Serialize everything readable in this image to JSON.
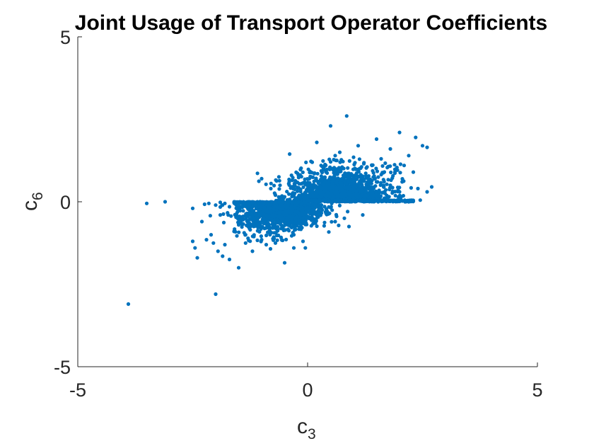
{
  "chart_data": {
    "type": "scatter",
    "title": "Joint Usage of Transport Operator Coefficients",
    "xlabel": {
      "base": "c",
      "sub": "3"
    },
    "ylabel": {
      "base": "c",
      "sub": "6"
    },
    "xlim": [
      -5,
      5
    ],
    "ylim": [
      -5,
      5
    ],
    "xticks": [
      "-5",
      "0",
      "5"
    ],
    "yticks": [
      "5",
      "0",
      "-5"
    ],
    "grid": false,
    "color": "#0072BD",
    "series": [
      {
        "points": [
          [
            -3.9,
            -3.1
          ],
          [
            -3.5,
            -0.05
          ],
          [
            -3.1,
            0.0
          ],
          [
            -2.5,
            -0.2
          ],
          [
            -2.5,
            -1.2
          ],
          [
            -2.45,
            -1.4
          ],
          [
            -2.4,
            -1.7
          ],
          [
            -2.3,
            -0.6
          ],
          [
            -2.2,
            -1.15
          ],
          [
            -2.1,
            -1.0
          ],
          [
            -2.05,
            -1.25
          ],
          [
            -2.0,
            -2.8
          ],
          [
            -1.95,
            -1.5
          ],
          [
            -1.9,
            -0.4
          ],
          [
            -1.85,
            -1.65
          ],
          [
            -1.8,
            -1.3
          ],
          [
            -1.7,
            -1.75
          ],
          [
            -1.6,
            -0.9
          ],
          [
            -1.5,
            -2.0
          ],
          [
            -1.35,
            -1.25
          ],
          [
            -1.2,
            -1.5
          ],
          [
            -1.1,
            -0.7
          ],
          [
            -1.0,
            0.7
          ],
          [
            -0.9,
            -1.3
          ],
          [
            -0.5,
            -1.85
          ],
          [
            -0.3,
            -1.4
          ],
          [
            -0.1,
            -1.2
          ],
          [
            -0.05,
            -1.4
          ],
          [
            -2.15,
            -0.05
          ],
          [
            -2.0,
            -0.1
          ],
          [
            -1.9,
            -0.02
          ],
          [
            -1.8,
            -0.05
          ],
          [
            -1.7,
            -0.15
          ],
          [
            -1.6,
            -0.03
          ],
          [
            -1.55,
            -0.4
          ],
          [
            -1.45,
            -0.6
          ],
          [
            -1.4,
            -0.08
          ],
          [
            -1.3,
            -0.2
          ],
          [
            -1.25,
            -0.85
          ],
          [
            -1.2,
            -0.03
          ],
          [
            -0.8,
            0.4
          ],
          [
            -0.6,
            0.5
          ],
          [
            -0.4,
            0.6
          ],
          [
            -0.2,
            0.8
          ],
          [
            0.1,
            1.2
          ],
          [
            0.2,
            1.8
          ],
          [
            0.5,
            2.3
          ],
          [
            0.85,
            2.6
          ],
          [
            0.6,
            1.4
          ],
          [
            1.1,
            1.7
          ],
          [
            1.5,
            1.9
          ],
          [
            1.8,
            1.6
          ],
          [
            2.0,
            2.1
          ],
          [
            2.2,
            1.4
          ],
          [
            2.35,
            1.95
          ],
          [
            2.5,
            1.7
          ],
          [
            2.6,
            1.65
          ],
          [
            2.3,
            0.9
          ],
          [
            2.1,
            1.1
          ],
          [
            1.9,
            0.9
          ],
          [
            2.4,
            0.4
          ],
          [
            2.6,
            0.3
          ],
          [
            2.7,
            0.45
          ],
          [
            2.45,
            0.05
          ],
          [
            2.3,
            0.02
          ],
          [
            2.2,
            0.0
          ],
          [
            1.7,
            0.02
          ],
          [
            1.2,
            0.03
          ],
          [
            0.6,
            -0.6
          ],
          [
            0.8,
            -0.5
          ],
          [
            0.9,
            -0.75
          ],
          [
            1.2,
            -0.4
          ],
          [
            0.4,
            -0.35
          ],
          [
            -0.7,
            0.2
          ],
          [
            -0.5,
            0.15
          ],
          [
            0.3,
            -0.2
          ],
          [
            1.4,
            1.1
          ],
          [
            1.6,
            1.3
          ],
          [
            0.7,
            1.5
          ],
          [
            1.0,
            1.35
          ],
          [
            -0.3,
            -1.0
          ],
          [
            -1.0,
            -1.15
          ],
          [
            -0.7,
            -1.25
          ],
          [
            -1.35,
            -1.0
          ],
          [
            -1.5,
            -0.7
          ],
          [
            1.8,
            0.5
          ],
          [
            2.0,
            0.3
          ],
          [
            1.5,
            0.6
          ]
        ]
      }
    ]
  }
}
